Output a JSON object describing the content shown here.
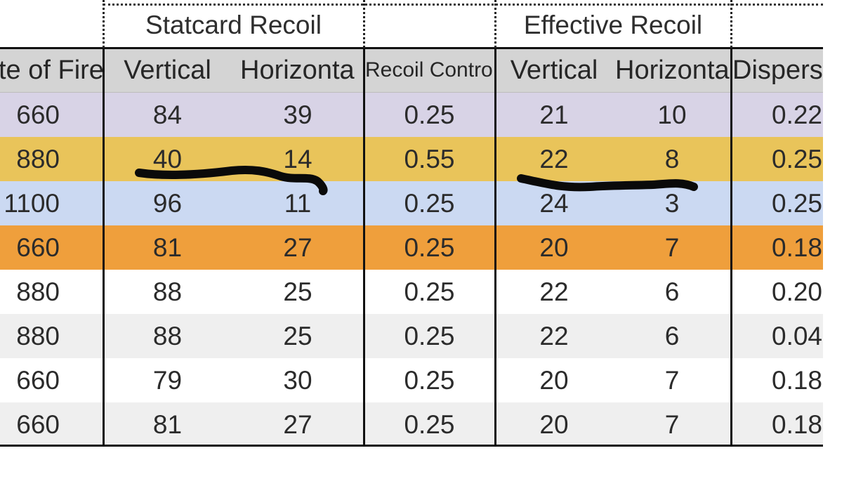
{
  "table": {
    "group_headers": {
      "statcard_recoil": "Statcard Recoil",
      "effective_recoil": "Effective Recoil"
    },
    "columns": [
      "te of Fire",
      "Vertical",
      "Horizonta",
      "Recoil Contro",
      "Vertical",
      "Horizonta",
      "Dispers"
    ],
    "rows": [
      {
        "color": "#d8d3e6",
        "cells": [
          "660",
          "84",
          "39",
          "0.25",
          "21",
          "10",
          "0.22"
        ]
      },
      {
        "color": "#e9c45a",
        "cells": [
          "880",
          "40",
          "14",
          "0.55",
          "22",
          "8",
          "0.25"
        ]
      },
      {
        "color": "#cbd9f2",
        "cells": [
          "1100",
          "96",
          "11",
          "0.25",
          "24",
          "3",
          "0.25"
        ]
      },
      {
        "color": "#ef9f3c",
        "cells": [
          "660",
          "81",
          "27",
          "0.25",
          "20",
          "7",
          "0.18"
        ]
      },
      {
        "color": "#ffffff",
        "cells": [
          "880",
          "88",
          "25",
          "0.25",
          "22",
          "6",
          "0.20"
        ]
      },
      {
        "color": "#efefef",
        "cells": [
          "880",
          "88",
          "25",
          "0.25",
          "22",
          "6",
          "0.04"
        ]
      },
      {
        "color": "#ffffff",
        "cells": [
          "660",
          "79",
          "30",
          "0.25",
          "20",
          "7",
          "0.18"
        ]
      },
      {
        "color": "#efefef",
        "cells": [
          "660",
          "81",
          "27",
          "0.25",
          "20",
          "7",
          "0.18"
        ]
      }
    ]
  },
  "annotations": {
    "scribble_color": "#0a0a0a"
  }
}
